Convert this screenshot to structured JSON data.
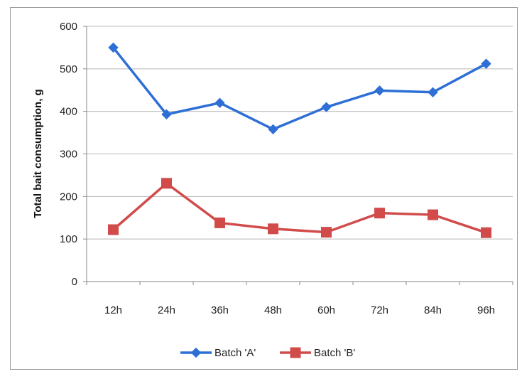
{
  "chart_data": {
    "type": "line",
    "title": "",
    "xlabel": "",
    "ylabel": "Total bait consumption, g",
    "categories": [
      "12h",
      "24h",
      "36h",
      "48h",
      "60h",
      "72h",
      "84h",
      "96h"
    ],
    "ylim": [
      0,
      600
    ],
    "yticks": [
      0,
      100,
      200,
      300,
      400,
      500,
      600
    ],
    "grid": true,
    "legend_position": "bottom",
    "series": [
      {
        "name": "Batch 'A'",
        "values": [
          550,
          393,
          420,
          358,
          410,
          449,
          445,
          512
        ],
        "color": "#2E6FD6",
        "marker": "diamond"
      },
      {
        "name": "Batch 'B'",
        "values": [
          122,
          231,
          138,
          124,
          116,
          161,
          157,
          115
        ],
        "color": "#D24B4B",
        "marker": "square"
      }
    ]
  }
}
